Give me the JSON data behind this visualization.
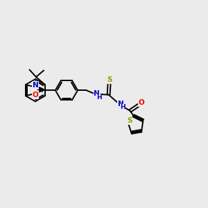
{
  "bg_color": "#ebebeb",
  "atom_colors": {
    "N": "#0000cc",
    "O": "#ff0000",
    "S": "#999900",
    "C": "#000000"
  },
  "bond_color": "#000000",
  "bond_width": 1.4,
  "figsize": [
    3.0,
    3.0
  ],
  "dpi": 100
}
